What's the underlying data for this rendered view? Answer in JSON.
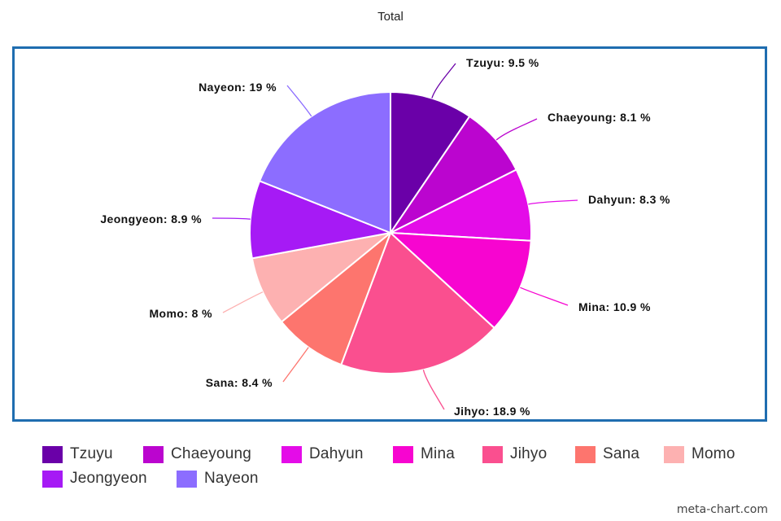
{
  "chart_data": {
    "type": "pie",
    "title": "Total",
    "slices": [
      {
        "label": "Tzuyu",
        "value": 9.5,
        "color": "#6a00a8"
      },
      {
        "label": "Chaeyoung",
        "value": 8.1,
        "color": "#bb05cf"
      },
      {
        "label": "Dahyun",
        "value": 8.3,
        "color": "#e40ce8"
      },
      {
        "label": "Mina",
        "value": 10.9,
        "color": "#f705d0"
      },
      {
        "label": "Jihyo",
        "value": 18.9,
        "color": "#fa4f8f"
      },
      {
        "label": "Sana",
        "value": 8.4,
        "color": "#fd756e"
      },
      {
        "label": "Momo",
        "value": 8.0,
        "color": "#fdb1b1"
      },
      {
        "label": "Jeongyeon",
        "value": 8.9,
        "color": "#a61af5"
      },
      {
        "label": "Nayeon",
        "value": 19.0,
        "color": "#8c6dff"
      }
    ],
    "data_labels": [
      "Tzuyu: 9.5 %",
      "Chaeyoung: 8.1 %",
      "Dahyun: 8.3 %",
      "Mina: 10.9 %",
      "Jihyo: 18.9 %",
      "Sana: 8.4 %",
      "Momo: 8 %",
      "Jeongyeon: 8.9 %",
      "Nayeon: 19 %"
    ],
    "legend": [
      "Tzuyu",
      "Chaeyoung",
      "Dahyun",
      "Mina",
      "Jihyo",
      "Sana",
      "Momo",
      "Jeongyeon",
      "Nayeon"
    ],
    "legend_position": "bottom",
    "start": "top",
    "direction": "clockwise"
  },
  "watermark": "meta-chart.com",
  "frame_color": "#1f6db0"
}
